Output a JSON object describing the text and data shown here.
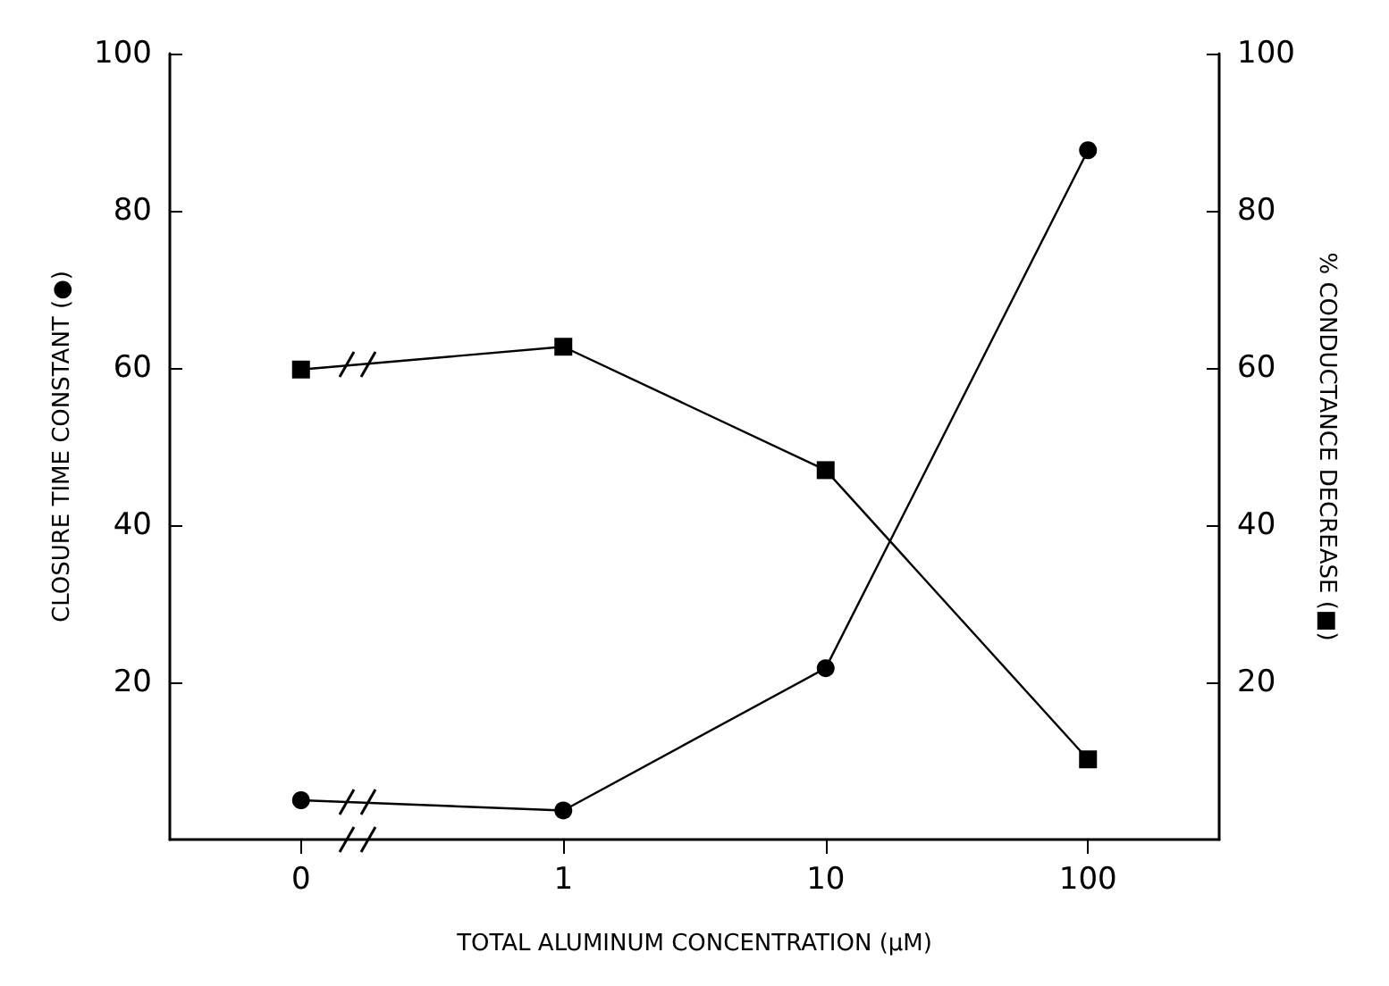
{
  "chart_data": {
    "type": "line",
    "xlabel": "TOTAL ALUMINUM CONCENTRATION (μM)",
    "ylabel": "CLOSURE TIME CONSTANT (●)",
    "y2label": "% CONDUCTANCE DECREASE (■)",
    "categories": [
      "0",
      "1",
      "10",
      "100"
    ],
    "series": [
      {
        "color": "#000000",
        "marker": "circle",
        "values": [
          5,
          3.7,
          21.8,
          87.7
        ]
      },
      {
        "color": "#000000",
        "marker": "square",
        "axis": "y2",
        "values": [
          59.8,
          62.7,
          47,
          10.2
        ]
      }
    ],
    "ylim": [
      0,
      100
    ],
    "yticks": [
      20,
      40,
      60,
      80,
      100
    ],
    "y2lim": [
      0,
      100
    ],
    "y2ticks": [
      20,
      40,
      60,
      80,
      100
    ],
    "grid": false,
    "line_style": "solid"
  }
}
